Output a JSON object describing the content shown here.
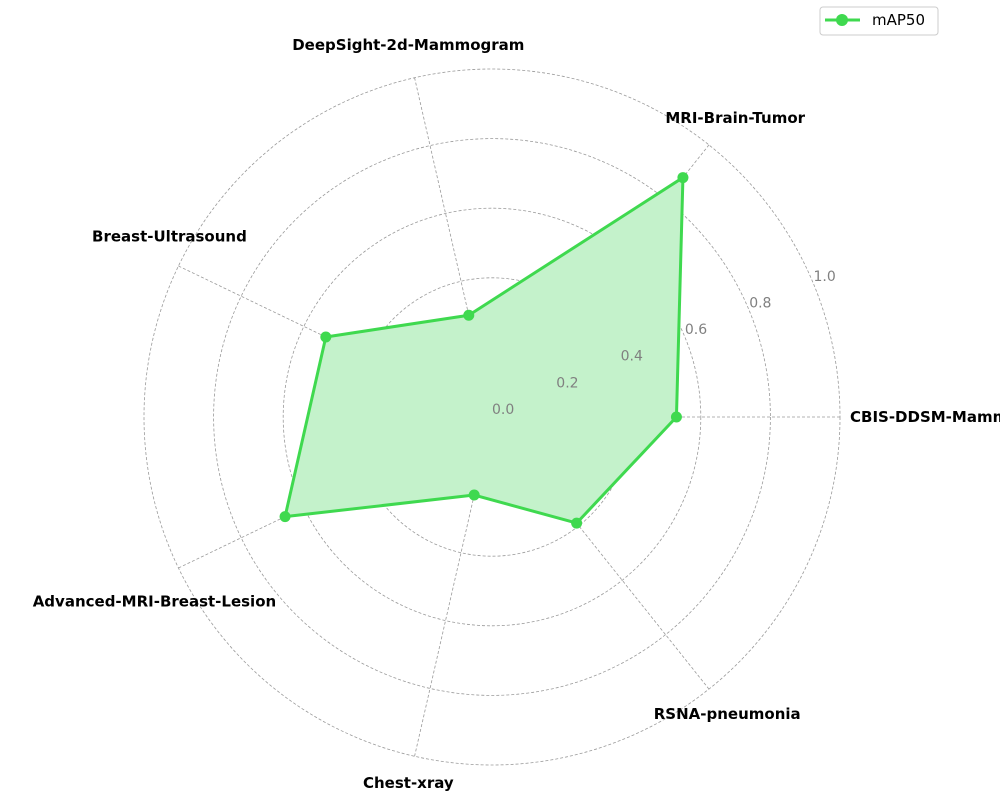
{
  "chart_data": {
    "type": "radar",
    "categories": [
      "CBIS-DDSM-Mammogram",
      "MRI-Brain-Tumor",
      "DeepSight-2d-Mammogram",
      "Breast-Ultrasound",
      "Advanced-MRI-Breast-Lesion",
      "Chest-xray",
      "RSNA-pneumonia"
    ],
    "series": [
      {
        "name": "mAP50",
        "values": [
          0.53,
          0.88,
          0.3,
          0.53,
          0.66,
          0.23,
          0.39
        ],
        "color": "#3fd94f"
      }
    ],
    "r_ticks": [
      "0.0",
      "0.2",
      "0.4",
      "0.6",
      "0.8",
      "1.0"
    ],
    "r_tick_values": [
      0,
      0.2,
      0.4,
      0.6,
      0.8,
      1.0
    ],
    "rlim": [
      0,
      1.0
    ],
    "fill_color": "#c4f2cb",
    "grid": true,
    "legend_position": "top-right"
  }
}
